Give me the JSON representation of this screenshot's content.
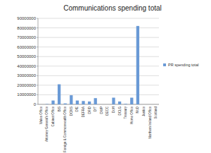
{
  "chart_data": {
    "type": "bar",
    "title": "Communications spending total",
    "categories": [
      "Wales Office",
      "Attorney General's Office",
      "Cabinet Office",
      "BIS",
      "Foreign & Commonwealth Office",
      "DCMS",
      "DfE",
      "DEFRA",
      "DFID",
      "DfT",
      "DWP",
      "DECC",
      "DoH",
      "DCLG",
      "Treasury",
      "Home Office",
      "MoD",
      "Justice",
      "Northern Ireland Office",
      "Scotland"
    ],
    "series": [
      {
        "name": "PR spending total",
        "color": "#6a9ad6",
        "values": [
          0,
          300000,
          4000000,
          21000000,
          1000000,
          9500000,
          4000000,
          3500000,
          3000000,
          6500000,
          0,
          0,
          7000000,
          3000000,
          500000,
          7000000,
          82000000,
          0,
          0,
          0
        ]
      }
    ],
    "ylim": [
      0,
      90000000
    ],
    "yticks": [
      0,
      10000000,
      20000000,
      30000000,
      40000000,
      50000000,
      60000000,
      70000000,
      80000000,
      90000000
    ],
    "grid": true,
    "legend": "right"
  }
}
